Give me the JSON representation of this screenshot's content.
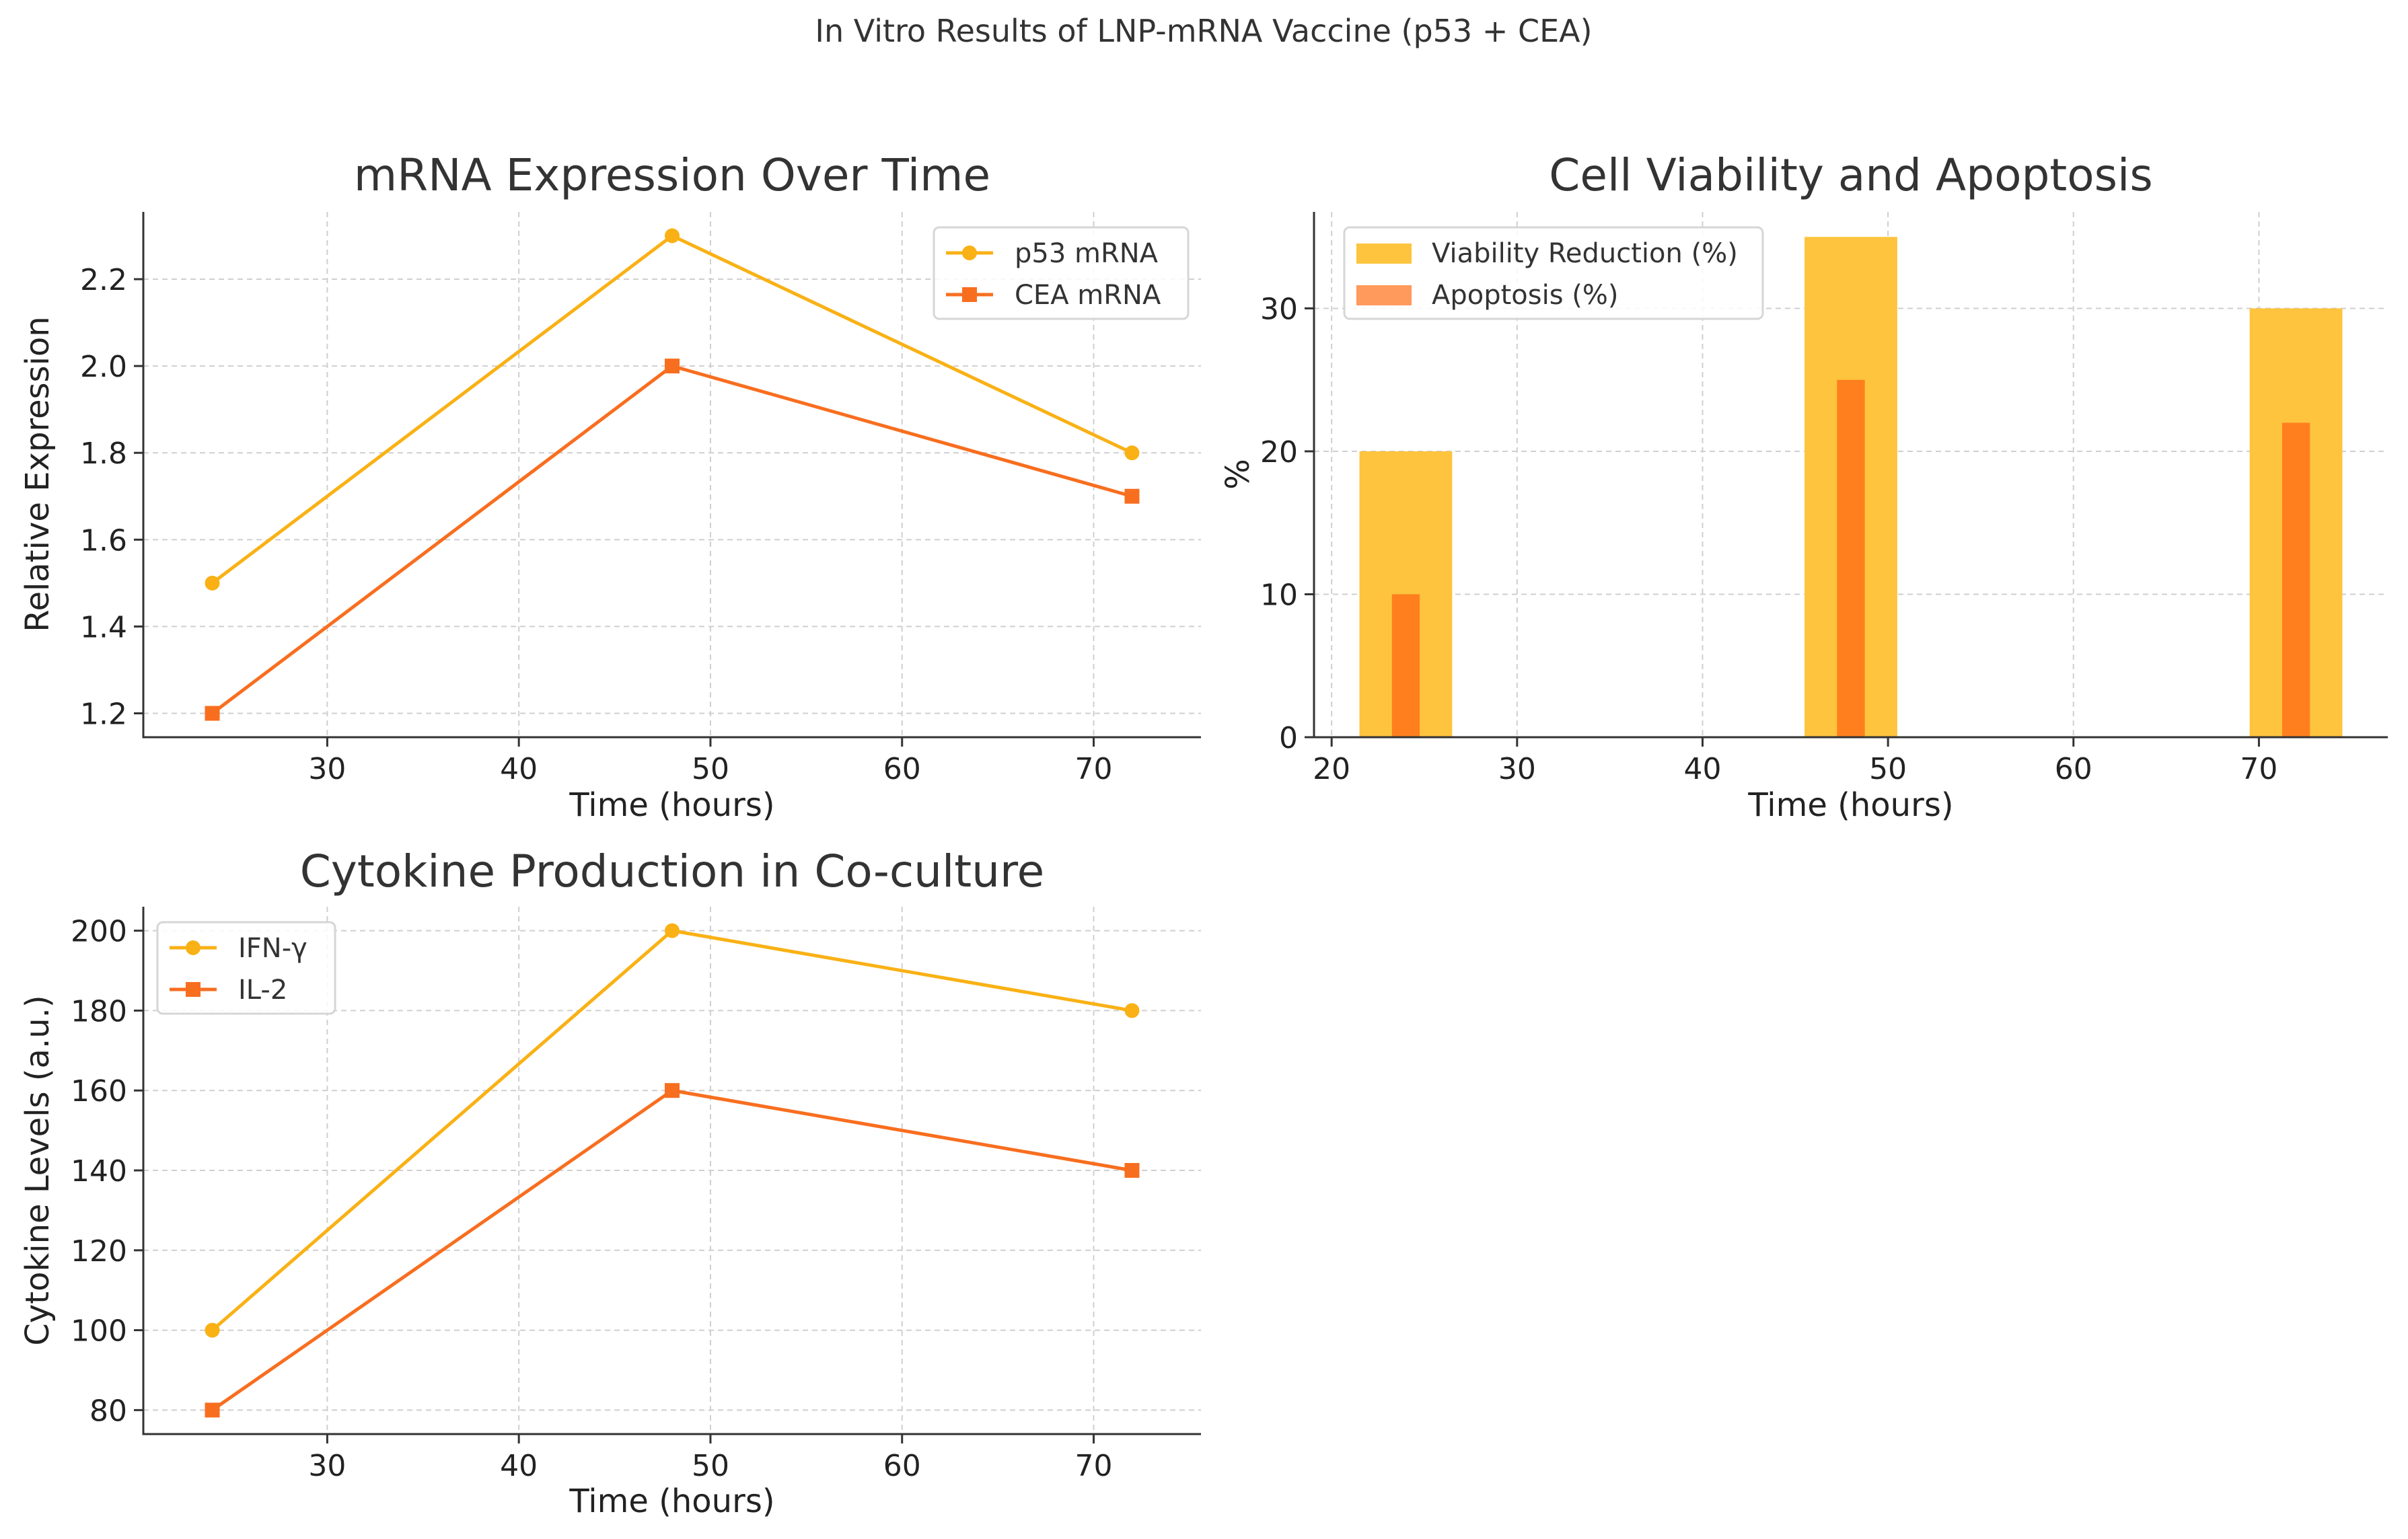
{
  "figure_title": "In Vitro Results of LNP-mRNA Vaccine (p53 + CEA)",
  "colors": {
    "yellow": "#F9B115",
    "orange": "#F86E1F",
    "viability": "#FEC43E",
    "apoptosis": "#FF7F1F",
    "apoptosis_legend": "#FF9A5C"
  },
  "chart_data": [
    {
      "id": "mrna",
      "type": "line",
      "title": "mRNA Expression Over Time",
      "xlabel": "Time (hours)",
      "ylabel": "Relative Expression",
      "x": [
        24,
        48,
        72
      ],
      "xlim": [
        20.4,
        75.6
      ],
      "ylim": [
        1.145,
        2.355
      ],
      "xticks": [
        30,
        40,
        50,
        60,
        70
      ],
      "yticks": [
        1.2,
        1.4,
        1.6,
        1.8,
        2.0,
        2.2
      ],
      "ytick_labels": [
        "1.2",
        "1.4",
        "1.6",
        "1.8",
        "2.0",
        "2.2"
      ],
      "legend_position": "top-right",
      "series": [
        {
          "name": "p53 mRNA",
          "values": [
            1.5,
            2.3,
            1.8
          ],
          "color": "#F9B115",
          "marker": "circle"
        },
        {
          "name": "CEA mRNA",
          "values": [
            1.2,
            2.0,
            1.7
          ],
          "color": "#F86E1F",
          "marker": "square"
        }
      ]
    },
    {
      "id": "viability",
      "type": "bar",
      "title": "Cell Viability and Apoptosis",
      "xlabel": "Time (hours)",
      "ylabel": "%",
      "x": [
        24,
        48,
        72
      ],
      "xlim": [
        19.05,
        76.95
      ],
      "ylim": [
        0,
        36.75
      ],
      "xticks": [
        20,
        30,
        40,
        50,
        60,
        70
      ],
      "yticks": [
        0,
        10,
        20,
        30
      ],
      "ytick_labels": [
        "0",
        "10",
        "20",
        "30"
      ],
      "legend_position": "top-left",
      "series": [
        {
          "name": "Viability Reduction (%)",
          "values": [
            20,
            35,
            30
          ],
          "color": "#FEC43E",
          "bar_width_hours": 5
        },
        {
          "name": "Apoptosis (%)",
          "values": [
            10,
            25,
            22
          ],
          "color": "#FF7F1F",
          "bar_width_hours": 1.5
        }
      ]
    },
    {
      "id": "cytokine",
      "type": "line",
      "title": "Cytokine Production in Co-culture",
      "xlabel": "Time (hours)",
      "ylabel": "Cytokine Levels (a.u.)",
      "x": [
        24,
        48,
        72
      ],
      "xlim": [
        20.4,
        75.6
      ],
      "ylim": [
        74,
        206
      ],
      "xticks": [
        30,
        40,
        50,
        60,
        70
      ],
      "yticks": [
        80,
        100,
        120,
        140,
        160,
        180,
        200
      ],
      "ytick_labels": [
        "80",
        "100",
        "120",
        "140",
        "160",
        "180",
        "200"
      ],
      "legend_position": "top-left",
      "series": [
        {
          "name": "IFN-γ",
          "values": [
            100,
            200,
            180
          ],
          "color": "#F9B115",
          "marker": "circle"
        },
        {
          "name": "IL-2",
          "values": [
            80,
            160,
            140
          ],
          "color": "#F86E1F",
          "marker": "square"
        }
      ]
    }
  ]
}
